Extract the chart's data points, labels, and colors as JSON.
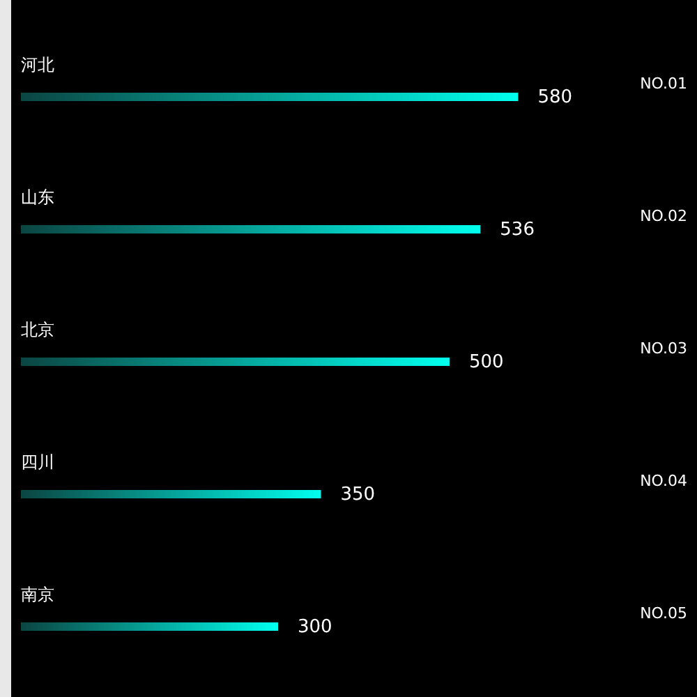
{
  "chart_data": {
    "type": "bar",
    "orientation": "horizontal",
    "categories": [
      "河北",
      "山东",
      "北京",
      "四川",
      "南京"
    ],
    "values": [
      580,
      536,
      500,
      350,
      300
    ],
    "color": "#00ffee",
    "data_labels": true,
    "annotations": [
      "NO.01",
      "NO.02",
      "NO.03",
      "NO.04",
      "NO.05"
    ]
  }
}
